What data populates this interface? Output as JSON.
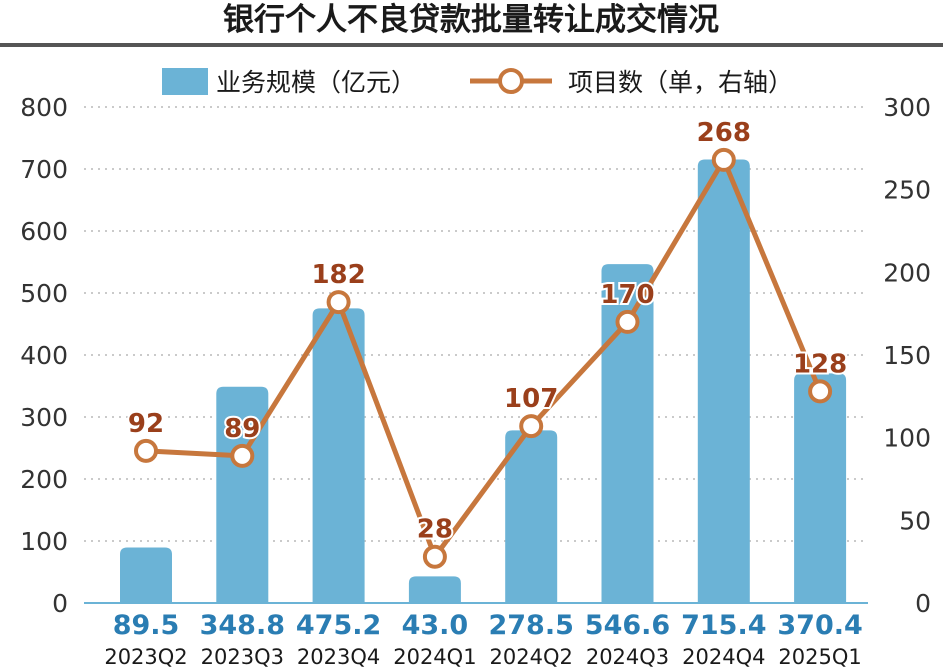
{
  "chart_data": {
    "type": "bar",
    "title": "银行个人不良贷款批量转让成交情况",
    "categories": [
      "2023Q2",
      "2023Q3",
      "2023Q4",
      "2024Q1",
      "2024Q2",
      "2024Q3",
      "2024Q4",
      "2025Q1"
    ],
    "series": [
      {
        "name": "业务规模（亿元）",
        "type": "bar",
        "axis": "left",
        "values": [
          89.5,
          348.8,
          475.2,
          43.0,
          278.5,
          546.6,
          715.4,
          370.4
        ],
        "value_labels": [
          "89.5",
          "348.8",
          "475.2",
          "43.0",
          "278.5",
          "546.6",
          "715.4",
          "370.4"
        ]
      },
      {
        "name": "项目数（单，右轴）",
        "type": "line",
        "axis": "right",
        "values": [
          92,
          89,
          182,
          28,
          107,
          170,
          268,
          128
        ],
        "value_labels": [
          "92",
          "89",
          "182",
          "28",
          "107",
          "170",
          "268",
          "128"
        ]
      }
    ],
    "y_left": {
      "min": 0,
      "max": 800,
      "ticks": [
        "0",
        "100",
        "200",
        "300",
        "400",
        "500",
        "600",
        "700",
        "800"
      ]
    },
    "y_right": {
      "min": 0,
      "max": 300,
      "ticks": [
        "0",
        "50",
        "100",
        "150",
        "200",
        "250",
        "300"
      ]
    },
    "grid": "dotted horizontal",
    "legend_position": "top-center",
    "colors": {
      "bar": "#6bb3d6",
      "line": "#c7773d",
      "bar_label": "#2a7db3",
      "line_label": "#9a3f1b",
      "rule": "#555555"
    }
  }
}
